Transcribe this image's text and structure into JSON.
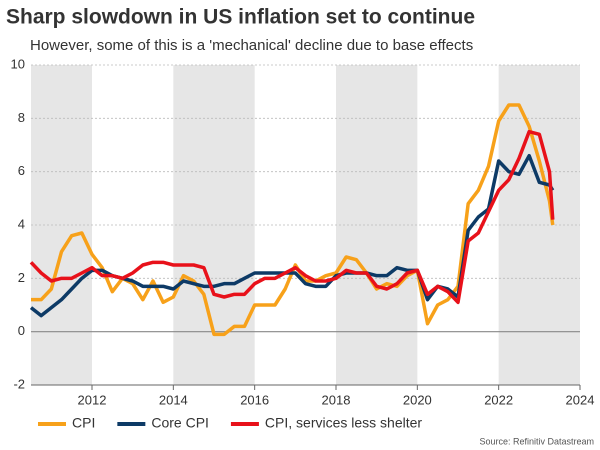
{
  "chart_data": {
    "type": "line",
    "title": "Sharp slowdown in US inflation set to continue",
    "subtitle": "However, some of this is a 'mechanical' decline due to base effects",
    "source": "Source: Refinitiv Datastream",
    "x": [
      2010.5,
      2010.75,
      2011,
      2011.25,
      2011.5,
      2011.75,
      2012,
      2012.25,
      2012.5,
      2012.75,
      2013,
      2013.25,
      2013.5,
      2013.75,
      2014,
      2014.25,
      2014.5,
      2014.75,
      2015,
      2015.25,
      2015.5,
      2015.75,
      2016,
      2016.25,
      2016.5,
      2016.75,
      2017,
      2017.25,
      2017.5,
      2017.75,
      2018,
      2018.25,
      2018.5,
      2018.75,
      2019,
      2019.25,
      2019.5,
      2019.75,
      2020,
      2020.25,
      2020.5,
      2020.75,
      2021,
      2021.25,
      2021.5,
      2021.75,
      2022,
      2022.25,
      2022.5,
      2022.75,
      2023,
      2023.25,
      2023.33
    ],
    "series": [
      {
        "name": "CPI",
        "color": "#f7a11a",
        "values": [
          1.2,
          1.2,
          1.6,
          3.0,
          3.6,
          3.7,
          2.9,
          2.4,
          1.5,
          2.0,
          1.8,
          1.2,
          1.9,
          1.1,
          1.3,
          2.1,
          1.9,
          1.4,
          -0.1,
          -0.1,
          0.2,
          0.2,
          1.0,
          1.0,
          1.0,
          1.6,
          2.5,
          1.9,
          1.9,
          2.1,
          2.2,
          2.8,
          2.7,
          2.2,
          1.6,
          1.8,
          1.7,
          2.1,
          2.3,
          0.3,
          1.0,
          1.2,
          1.7,
          4.8,
          5.3,
          6.2,
          7.9,
          8.5,
          8.5,
          7.7,
          6.4,
          4.9,
          4.0
        ]
      },
      {
        "name": "Core CPI",
        "color": "#0d3a66",
        "values": [
          0.9,
          0.6,
          0.9,
          1.2,
          1.6,
          2.0,
          2.3,
          2.3,
          2.1,
          2.0,
          1.9,
          1.7,
          1.7,
          1.7,
          1.6,
          1.9,
          1.8,
          1.7,
          1.7,
          1.8,
          1.8,
          2.0,
          2.2,
          2.2,
          2.2,
          2.2,
          2.2,
          1.8,
          1.7,
          1.7,
          2.1,
          2.2,
          2.2,
          2.2,
          2.1,
          2.1,
          2.4,
          2.3,
          2.3,
          1.2,
          1.7,
          1.6,
          1.3,
          3.8,
          4.3,
          4.6,
          6.4,
          6.0,
          5.9,
          6.6,
          5.6,
          5.5,
          5.3
        ]
      },
      {
        "name": "CPI, services less shelter",
        "color": "#e8111a",
        "values": [
          2.6,
          2.2,
          1.9,
          2.0,
          2.0,
          2.2,
          2.4,
          2.1,
          2.1,
          2.0,
          2.2,
          2.5,
          2.6,
          2.6,
          2.5,
          2.5,
          2.5,
          2.4,
          1.4,
          1.3,
          1.4,
          1.4,
          1.8,
          2.0,
          2.0,
          2.2,
          2.4,
          2.1,
          1.9,
          1.9,
          2.0,
          2.3,
          2.2,
          2.2,
          1.7,
          1.6,
          1.8,
          2.2,
          2.3,
          1.4,
          1.7,
          1.5,
          1.1,
          3.4,
          3.7,
          4.5,
          5.3,
          5.7,
          6.5,
          7.5,
          7.4,
          6.0,
          4.2
        ]
      }
    ],
    "xlim": [
      2010.5,
      2024
    ],
    "xticks": [
      2012,
      2014,
      2016,
      2018,
      2020,
      2022,
      2024
    ],
    "ylim": [
      -2,
      10
    ],
    "yticks": [
      -2,
      0,
      2,
      4,
      6,
      8,
      10
    ],
    "grid": true
  }
}
